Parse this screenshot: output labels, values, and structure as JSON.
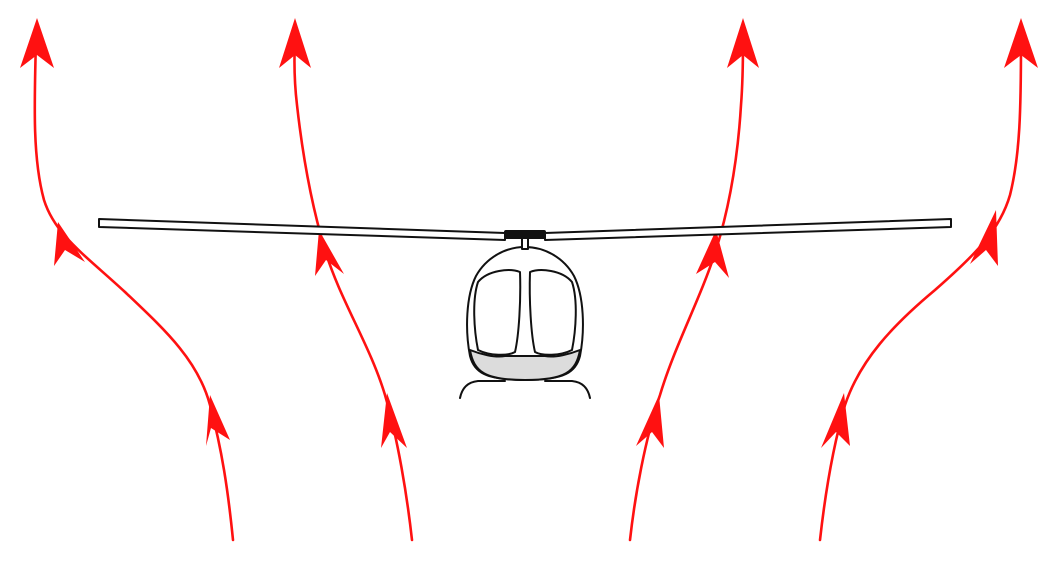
{
  "colors": {
    "background": "#ffffff",
    "airflow": "#ff1111",
    "outline": "#111111",
    "fuselage_fill": "#ffffff",
    "lower_body_fill": "#dcdcdc",
    "rotor_fill": "#ffffff"
  },
  "diagram": {
    "subject": "helicopter-icon",
    "airflow_streamlines": 4,
    "arrowheads_per_streamline": 3
  }
}
